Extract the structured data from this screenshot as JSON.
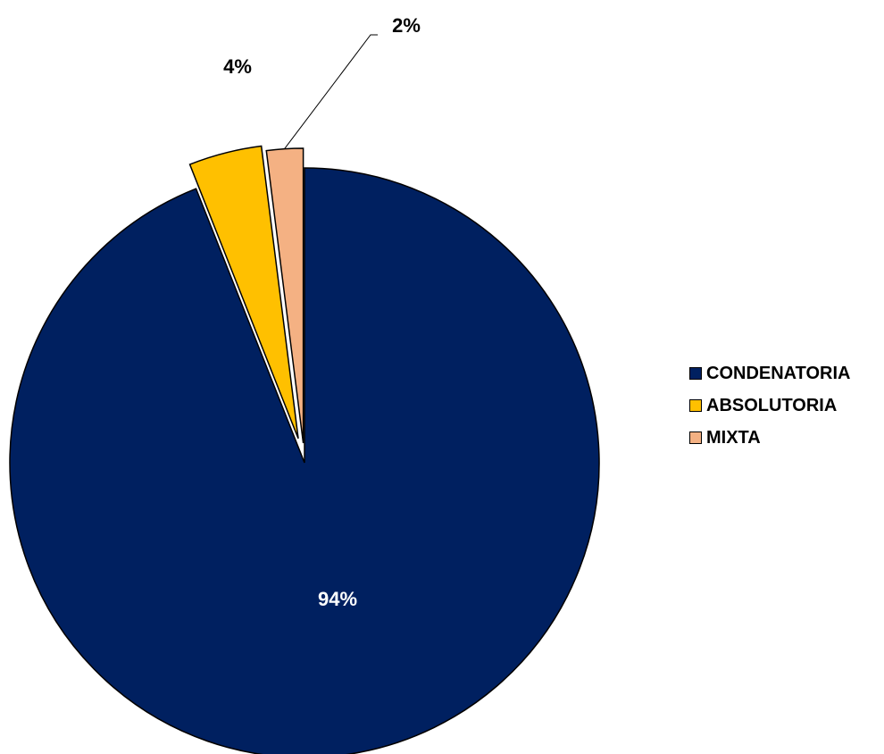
{
  "chart_data": {
    "type": "pie",
    "slices": [
      {
        "label": "CONDENATORIA",
        "value": 94,
        "data_label": "94%",
        "color": "#002060",
        "label_color": "#ffffff"
      },
      {
        "label": "ABSOLUTORIA",
        "value": 4,
        "data_label": "4%",
        "color": "#FFC000",
        "label_color": "#000000"
      },
      {
        "label": "MIXTA",
        "value": 2,
        "data_label": "2%",
        "color": "#F4B183",
        "label_color": "#000000"
      }
    ],
    "exploded": true,
    "legend_position": "right"
  }
}
